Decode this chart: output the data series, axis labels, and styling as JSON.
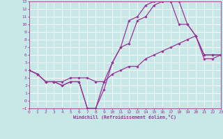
{
  "xlabel": "Windchill (Refroidissement éolien,°C)",
  "xlim": [
    0,
    23
  ],
  "ylim": [
    -1,
    13
  ],
  "xticks": [
    0,
    1,
    2,
    3,
    4,
    5,
    6,
    7,
    8,
    9,
    10,
    11,
    12,
    13,
    14,
    15,
    16,
    17,
    18,
    19,
    20,
    21,
    22,
    23
  ],
  "yticks": [
    -1,
    0,
    1,
    2,
    3,
    4,
    5,
    6,
    7,
    8,
    9,
    10,
    11,
    12,
    13
  ],
  "bg_color": "#c8e8e8",
  "grid_color": "#ffffff",
  "line_color": "#993399",
  "line1_x": [
    0,
    1,
    2,
    3,
    4,
    5,
    6,
    7,
    8,
    9,
    10,
    11,
    12,
    13,
    14,
    15,
    16,
    17,
    18,
    19,
    20,
    21,
    22,
    23
  ],
  "line1_y": [
    4,
    3.5,
    2.5,
    2.5,
    2.0,
    2.5,
    2.5,
    -1.0,
    -1.0,
    1.5,
    5.0,
    7.0,
    7.5,
    10.5,
    11.0,
    12.5,
    13.0,
    13.0,
    13.0,
    10.0,
    8.5,
    6.0,
    6.0,
    6.0
  ],
  "line2_x": [
    0,
    1,
    2,
    3,
    4,
    5,
    6,
    7,
    8,
    9,
    10,
    11,
    12,
    13,
    14,
    15,
    16,
    17,
    18,
    19,
    20,
    21,
    22,
    23
  ],
  "line2_y": [
    4,
    3.5,
    2.5,
    2.5,
    2.5,
    3.0,
    3.0,
    3.0,
    2.5,
    2.5,
    3.5,
    4.0,
    4.5,
    4.5,
    5.5,
    6.0,
    6.5,
    7.0,
    7.5,
    8.0,
    8.5,
    5.5,
    5.5,
    6.0
  ],
  "line3_x": [
    0,
    1,
    2,
    3,
    4,
    5,
    6,
    7,
    8,
    9,
    10,
    11,
    12,
    13,
    14,
    15,
    16,
    17,
    18,
    19,
    20,
    21,
    22,
    23
  ],
  "line3_y": [
    4,
    3.5,
    2.5,
    2.5,
    2.0,
    2.5,
    2.5,
    -1.0,
    -1.0,
    2.5,
    5.0,
    7.0,
    10.5,
    11.0,
    12.5,
    13.0,
    13.0,
    13.0,
    10.0,
    10.0,
    8.5,
    6.0,
    6.0,
    6.0
  ],
  "marker": "D",
  "markersize": 1.8,
  "linewidth": 0.9
}
